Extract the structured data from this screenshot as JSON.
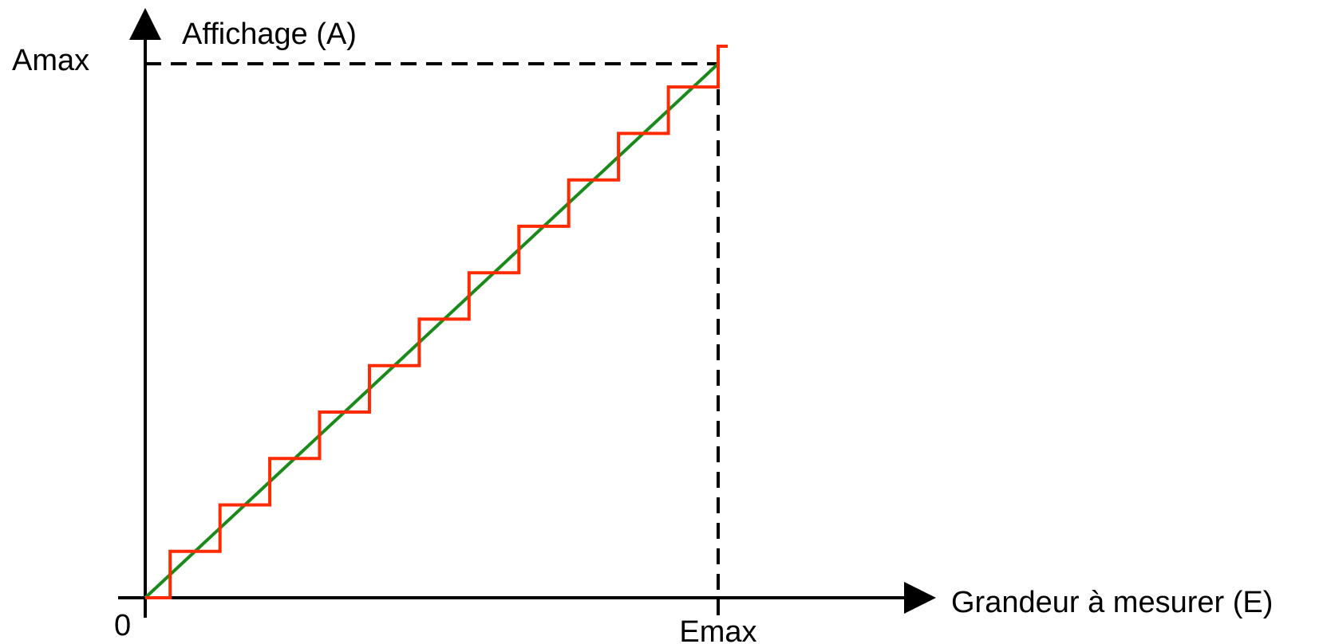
{
  "labels": {
    "y_axis": "Affichage (A)",
    "x_axis": "Grandeur à mesurer (E)",
    "y_max": "Amax",
    "x_max": "Emax",
    "origin": "0"
  },
  "chart_data": {
    "type": "line",
    "x_range": [
      0,
      1
    ],
    "y_range": [
      0,
      1
    ],
    "series": [
      {
        "kind": "ideal-linear",
        "color": "#1a8a1a",
        "points": [
          [
            0,
            0
          ],
          [
            1,
            1
          ]
        ]
      },
      {
        "kind": "quantized-staircase",
        "color": "#ff2a00",
        "steps": 11
      }
    ],
    "reference_lines": {
      "style": "dashed",
      "color": "#000000"
    }
  },
  "colors": {
    "axis": "#000000",
    "ideal": "#1a8a1a",
    "staircase": "#ff2a00",
    "dashed": "#000000"
  }
}
